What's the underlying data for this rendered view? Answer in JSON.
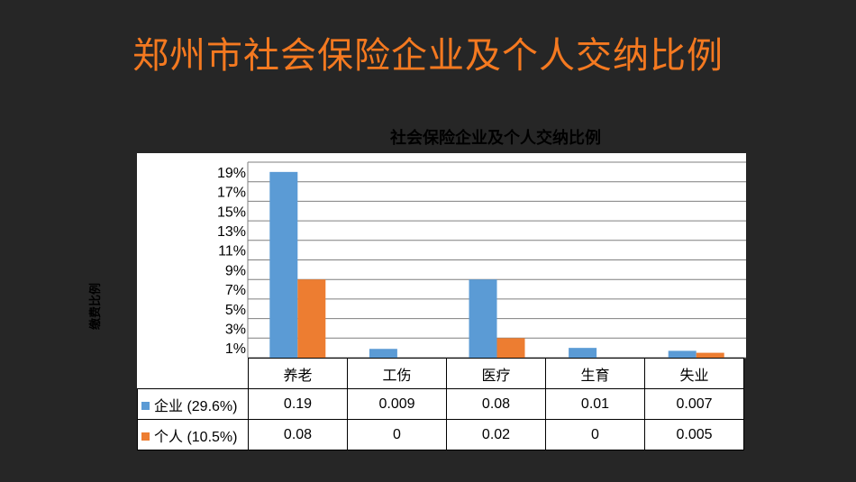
{
  "slide_title": "郑州市社会保险企业及个人交纳比例",
  "chart_data": {
    "type": "bar",
    "title": "社会保险企业及个人交纳比例",
    "ylabel": "缴费比例",
    "xlabel": "",
    "categories": [
      "养老",
      "工伤",
      "医疗",
      "生育",
      "失业"
    ],
    "series": [
      {
        "name": "企业 (29.6%)",
        "values": [
          0.19,
          0.009,
          0.08,
          0.01,
          0.007
        ],
        "labels": [
          "0.19",
          "0.009",
          "0.08",
          "0.01",
          "0.007"
        ],
        "color": "#5b9bd5"
      },
      {
        "name": "个人 (10.5%)",
        "values": [
          0.08,
          0,
          0.02,
          0,
          0.005
        ],
        "labels": [
          "0.08",
          "0",
          "0.02",
          "0",
          "0.005"
        ],
        "color": "#ed7d31"
      }
    ],
    "yticks": [
      "19%",
      "17%",
      "15%",
      "13%",
      "11%",
      "9%",
      "7%",
      "5%",
      "3%",
      "1%"
    ],
    "ylim": [
      0,
      0.2
    ],
    "grid": true,
    "legend": "table"
  }
}
